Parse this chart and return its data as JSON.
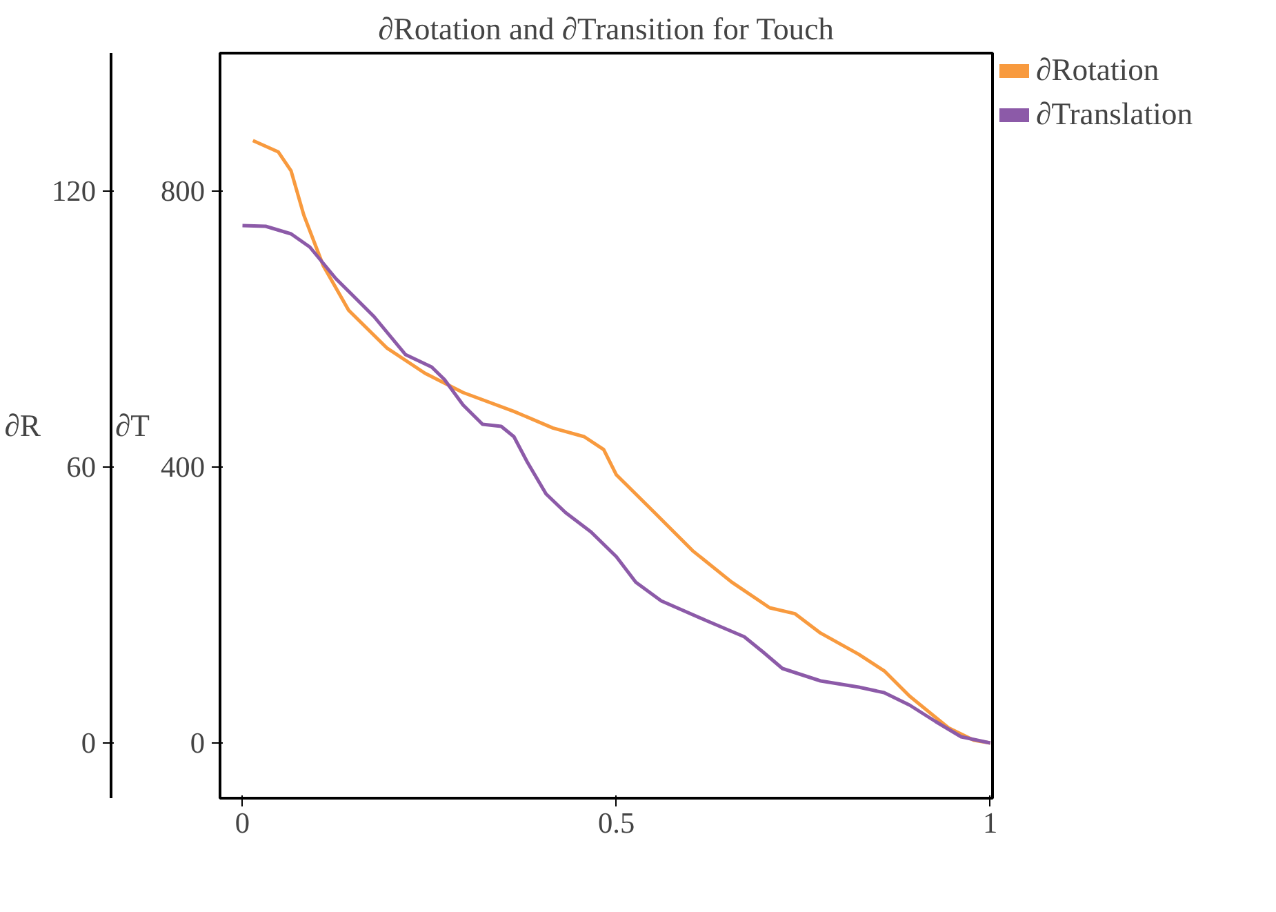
{
  "chart_data": {
    "type": "line",
    "title": "∂Rotation and ∂Transition for Touch",
    "ylabel": "∂T",
    "y2label": "∂R",
    "xlim": [
      -0.03,
      1.003
    ],
    "xticks": [
      0,
      0.5,
      1
    ],
    "ylim": [
      -80,
      1000
    ],
    "yticks": [
      0,
      400,
      800
    ],
    "y2lim": [
      -12,
      150
    ],
    "y2ticks": [
      0,
      60,
      120
    ],
    "legend": "right",
    "series": [
      {
        "name": "∂Rotation",
        "color": "#f89a3e",
        "axis": "y2",
        "x": [
          0.014,
          0.048,
          0.065,
          0.082,
          0.108,
          0.142,
          0.193,
          0.244,
          0.295,
          0.363,
          0.415,
          0.457,
          0.483,
          0.5,
          0.551,
          0.602,
          0.654,
          0.705,
          0.739,
          0.773,
          0.824,
          0.858,
          0.892,
          0.944,
          0.978,
          1.0
        ],
        "values": [
          131,
          128.5,
          124.4,
          114.8,
          103.8,
          94.1,
          85.9,
          80.4,
          76.2,
          72.1,
          68.5,
          66.6,
          63.8,
          58.3,
          50.1,
          41.8,
          35,
          29.4,
          28.1,
          23.9,
          19.3,
          15.7,
          10.2,
          3.3,
          0.6,
          0
        ]
      },
      {
        "name": "∂Translation",
        "color": "#8c5aa8",
        "x": [
          0,
          0.031,
          0.065,
          0.09,
          0.125,
          0.176,
          0.218,
          0.253,
          0.27,
          0.295,
          0.321,
          0.346,
          0.363,
          0.381,
          0.406,
          0.432,
          0.466,
          0.5,
          0.526,
          0.56,
          0.619,
          0.671,
          0.696,
          0.722,
          0.773,
          0.824,
          0.858,
          0.892,
          0.927,
          0.961,
          1.0
        ],
        "values": [
          750,
          749,
          738,
          719,
          673,
          618,
          563,
          545,
          527,
          490,
          462,
          459,
          444,
          407,
          361,
          334,
          306,
          270,
          233,
          206,
          178,
          154,
          132,
          108,
          90,
          81,
          73,
          55,
          31,
          9,
          0
        ]
      }
    ]
  }
}
